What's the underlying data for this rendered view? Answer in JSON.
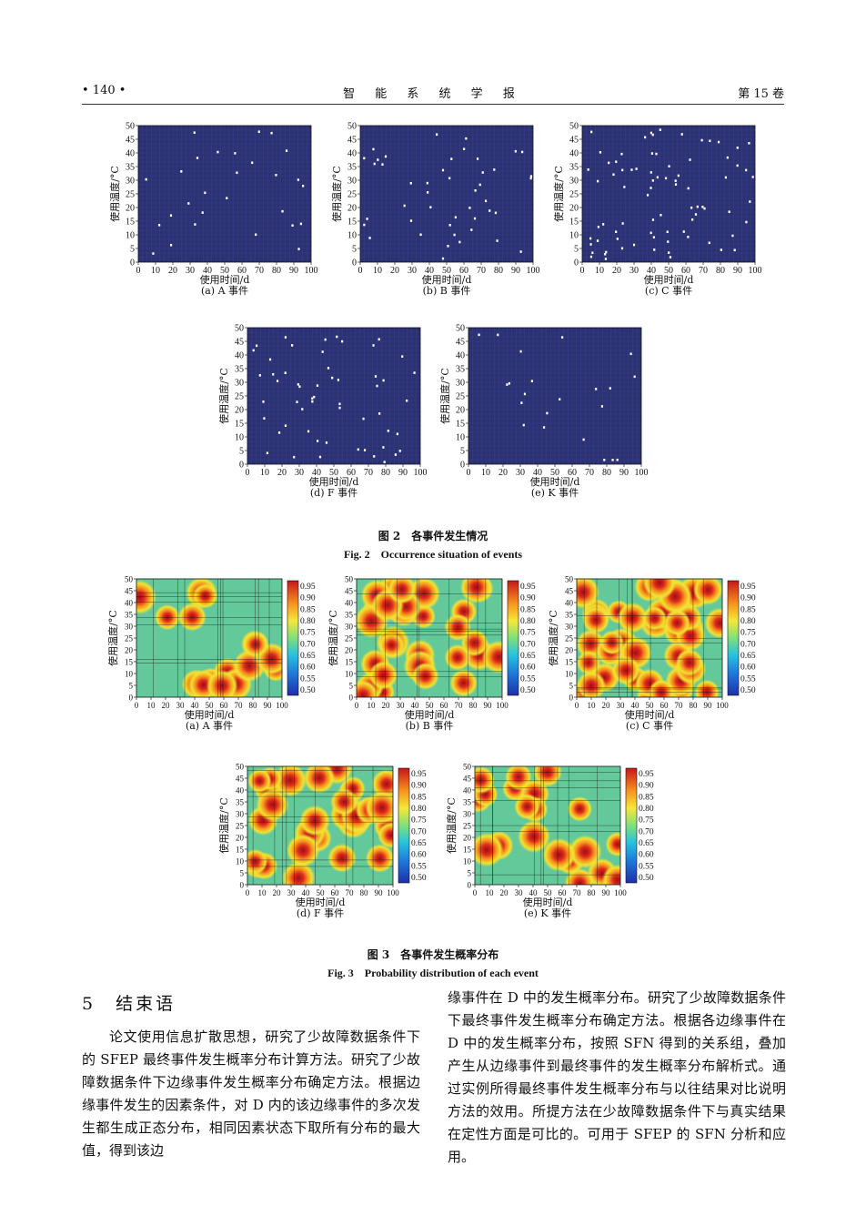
{
  "header": {
    "page": "• 140 •",
    "journal": "智 能 系 统 学 报",
    "volume": "第 15 卷"
  },
  "axes": {
    "y_label": "使用温度/°C",
    "x_label": "使用时间/d",
    "y_ticks": [
      "0",
      "5",
      "10",
      "15",
      "20",
      "25",
      "30",
      "35",
      "40",
      "45",
      "50"
    ],
    "x_ticks": [
      "0",
      "10",
      "20",
      "30",
      "40",
      "50",
      "60",
      "70",
      "80",
      "90",
      "100"
    ],
    "colorbar_ticks": [
      "0.95",
      "0.90",
      "0.85",
      "0.80",
      "0.75",
      "0.70",
      "0.65",
      "0.60",
      "0.55",
      "0.50"
    ]
  },
  "fig2": {
    "caption_cn": "图 2　各事件发生情况",
    "caption_en": "Fig. 2　Occurrence situation of events",
    "panels": [
      {
        "label": "(a) A 事件"
      },
      {
        "label": "(b) B 事件"
      },
      {
        "label": "(c) C 事件"
      },
      {
        "label": "(d) F 事件"
      },
      {
        "label": "(e) K 事件"
      }
    ]
  },
  "fig3": {
    "caption_cn": "图 3　各事件发生概率分布",
    "caption_en": "Fig. 3　Probability distribution of each event",
    "panels": [
      {
        "label": "(a) A 事件"
      },
      {
        "label": "(b) B 事件"
      },
      {
        "label": "(c) C 事件"
      },
      {
        "label": "(d) F 事件"
      },
      {
        "label": "(e) K 事件"
      }
    ]
  },
  "section": {
    "title": "5　结束语"
  },
  "body_left": "论文使用信息扩散思想，研究了少故障数据条件下的 SFEP 最终事件发生概率分布计算方法。研究了少故障数据条件下边缘事件发生概率分布确定方法。根据边缘事件发生的因素条件，对 D 内的该边缘事件的多次发生都生成正态分布，相同因素状态下取所有分布的最大值，得到该边",
  "body_right": "缘事件在 D 中的发生概率分布。研究了少故障数据条件下最终事件发生概率分布确定方法。根据各边缘事件在 D 中的发生概率分布，按照 SFN 得到的关系组，叠加产生从边缘事件到最终事件的发生概率分布解析式。通过实例所得最终事件发生概率分布与以往结果对比说明方法的效用。所提方法在少故障数据条件下与真实结果在定性方面是可比的。可用于 SFEP 的 SFN 分析和应用。",
  "colors": {
    "plot_bg": "#2c3172",
    "grid": "#3e4595",
    "point": "#ffffff"
  }
}
